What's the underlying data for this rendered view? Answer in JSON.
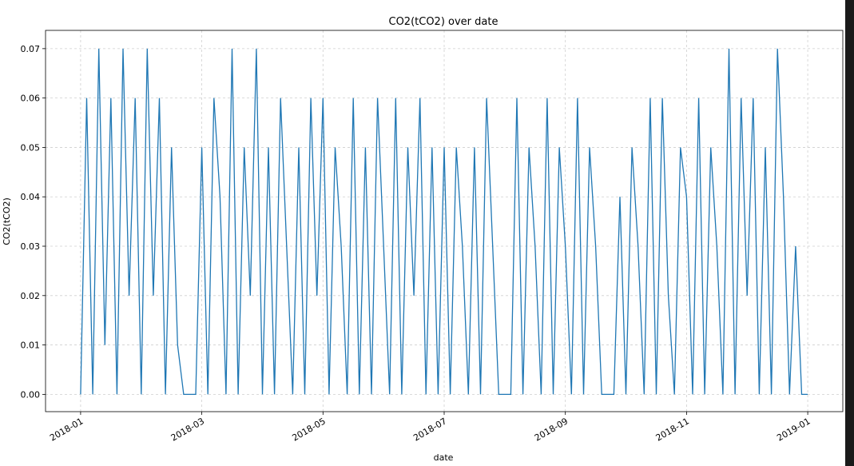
{
  "chart_data": {
    "type": "line",
    "title": "CO2(tCO2) over date",
    "x_label": "date",
    "y_label": "CO2(tCO2)",
    "x": [
      "2018-01",
      null,
      null,
      null,
      null,
      null,
      null,
      null,
      null,
      null,
      null,
      null,
      null,
      null,
      null,
      null,
      null,
      null,
      null,
      null,
      "2018-03",
      null,
      null,
      null,
      null,
      null,
      null,
      null,
      null,
      null,
      null,
      null,
      null,
      null,
      null,
      null,
      null,
      null,
      null,
      null,
      "2018-05",
      null,
      null,
      null,
      null,
      null,
      null,
      null,
      null,
      null,
      null,
      null,
      null,
      null,
      null,
      null,
      null,
      null,
      null,
      null,
      "2018-07",
      null,
      null,
      null,
      null,
      null,
      null,
      null,
      null,
      null,
      null,
      null,
      null,
      null,
      null,
      null,
      null,
      null,
      null,
      null,
      "2018-09",
      null,
      null,
      null,
      null,
      null,
      null,
      null,
      null,
      null,
      null,
      null,
      null,
      null,
      null,
      null,
      null,
      null,
      null,
      null,
      "2018-11",
      null,
      null,
      null,
      null,
      null,
      null,
      null,
      null,
      null,
      null,
      null,
      null,
      null,
      null,
      null,
      null,
      null,
      null,
      null,
      "2019-01"
    ],
    "series": [
      {
        "name": "CO2(tCO2)",
        "color": "#1f77b4",
        "values": [
          0,
          0.06,
          0,
          0.07,
          0.01,
          0.06,
          0,
          0.07,
          0.02,
          0.06,
          0,
          0.07,
          0.02,
          0.06,
          0,
          0.05,
          0.01,
          0,
          0,
          0,
          0.05,
          0,
          0.06,
          0.04,
          0,
          0.07,
          0,
          0.05,
          0.02,
          0.07,
          0,
          0.05,
          0,
          0.06,
          0.03,
          0,
          0.05,
          0,
          0.06,
          0.02,
          0.06,
          0,
          0.05,
          0.03,
          0,
          0.06,
          0,
          0.05,
          0,
          0.06,
          0.03,
          0,
          0.06,
          0,
          0.05,
          0.02,
          0.06,
          0,
          0.05,
          0,
          0.05,
          0,
          0.05,
          0.03,
          0,
          0.05,
          0,
          0.06,
          0.03,
          0,
          0,
          0,
          0.06,
          0,
          0.05,
          0.03,
          0,
          0.06,
          0,
          0.05,
          0.03,
          0,
          0.06,
          0,
          0.05,
          0.03,
          0,
          0,
          0,
          0.04,
          0,
          0.05,
          0.03,
          0,
          0.06,
          0,
          0.06,
          0.02,
          0,
          0.05,
          0.04,
          0,
          0.06,
          0,
          0.05,
          0.03,
          0,
          0.07,
          0,
          0.06,
          0.02,
          0.06,
          0,
          0.05,
          0,
          0.07,
          0.04,
          0,
          0.03,
          0,
          0
        ]
      }
    ],
    "ylim": [
      -0.0035,
      0.0737
    ],
    "yticks": [
      {
        "value": 0,
        "label": "0.00"
      },
      {
        "value": 0.01,
        "label": "0.01"
      },
      {
        "value": 0.02,
        "label": "0.02"
      },
      {
        "value": 0.03,
        "label": "0.03"
      },
      {
        "value": 0.04,
        "label": "0.04"
      },
      {
        "value": 0.05,
        "label": "0.05"
      },
      {
        "value": 0.06,
        "label": "0.06"
      },
      {
        "value": 0.07,
        "label": "0.07"
      }
    ],
    "grid": true
  }
}
